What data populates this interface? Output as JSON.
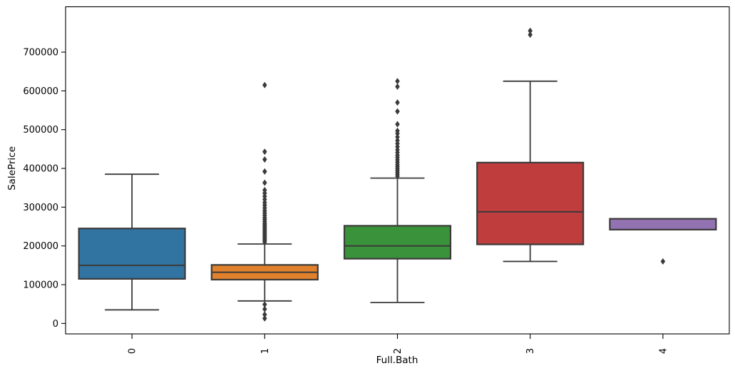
{
  "figure": {
    "background": "#ffffff"
  },
  "chart_data": {
    "type": "box",
    "title": "",
    "xlabel": "Full.Bath",
    "ylabel": "SalePrice",
    "categories": [
      "0",
      "1",
      "2",
      "3",
      "4"
    ],
    "ytick_values": [
      0,
      100000,
      200000,
      300000,
      400000,
      500000,
      600000,
      700000
    ],
    "ylim": [
      -27000,
      817000
    ],
    "grid": false,
    "legend": null,
    "palette": [
      "#3274a1",
      "#e1812c",
      "#3a923a",
      "#c03d3e",
      "#9372b2"
    ],
    "edge_color": "#3a3a3a",
    "boxes": [
      {
        "category": "0",
        "whislo": 35000,
        "q1": 115000,
        "med": 150000,
        "q3": 245000,
        "whishi": 385000,
        "fliers_high": [],
        "fliers_low": []
      },
      {
        "category": "1",
        "whislo": 58000,
        "q1": 113000,
        "med": 132000,
        "q3": 151000,
        "whishi": 205000,
        "fliers_high": [
          210000,
          214000,
          218000,
          222000,
          226000,
          230000,
          234000,
          238000,
          242000,
          246000,
          250000,
          254000,
          258000,
          263000,
          268000,
          273000,
          279000,
          285000,
          291000,
          298000,
          305000,
          312000,
          320000,
          328000,
          336000,
          344000,
          363000,
          392000,
          423000,
          443000,
          615000
        ],
        "fliers_low": [
          49000,
          37000,
          23000,
          13000
        ]
      },
      {
        "category": "2",
        "whislo": 54000,
        "q1": 167000,
        "med": 200000,
        "q3": 252000,
        "whishi": 375000,
        "fliers_high": [
          380000,
          385000,
          390000,
          395000,
          400000,
          405000,
          410000,
          416000,
          422000,
          428000,
          434000,
          441000,
          448000,
          456000,
          464000,
          472000,
          481000,
          490000,
          497000,
          514000,
          547000,
          570000,
          611000,
          625000
        ],
        "fliers_low": []
      },
      {
        "category": "3",
        "whislo": 160000,
        "q1": 204000,
        "med": 288000,
        "q3": 415000,
        "whishi": 625000,
        "fliers_high": [
          745000,
          755000
        ],
        "fliers_low": []
      },
      {
        "category": "4",
        "whislo": null,
        "q1": 242000,
        "med": null,
        "q3": 270000,
        "whishi": null,
        "fliers_high": [],
        "fliers_low": [
          160000
        ]
      }
    ]
  }
}
